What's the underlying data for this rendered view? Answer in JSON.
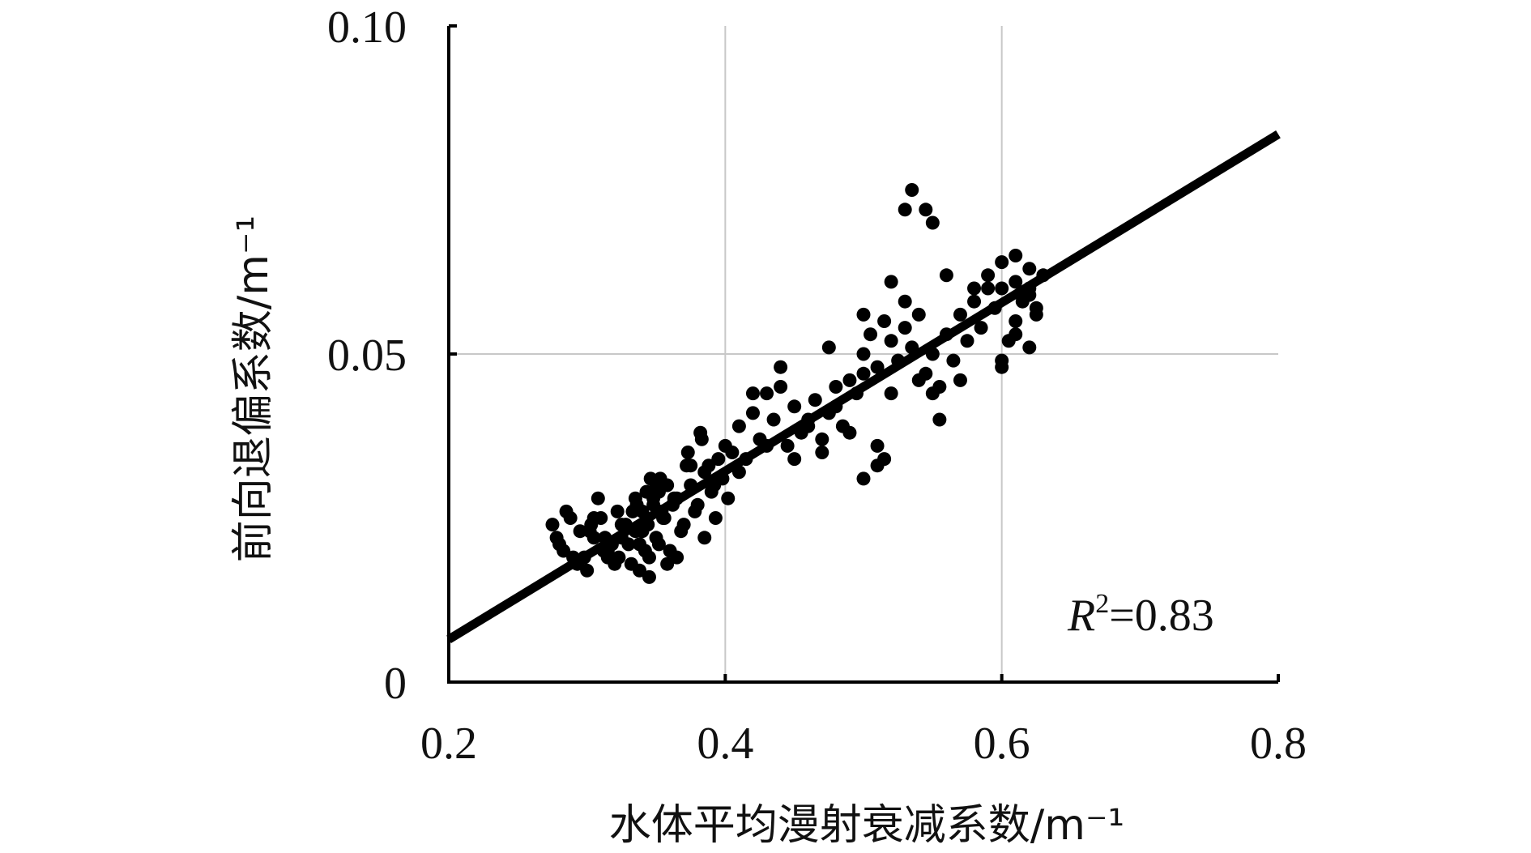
{
  "chart_data": {
    "type": "scatter",
    "title": "",
    "xlabel": "水体平均漫射衰减系数/m⁻¹",
    "ylabel": "前向退偏系数/m⁻¹",
    "xlim": [
      0.2,
      0.8
    ],
    "ylim": [
      0,
      0.1
    ],
    "x_ticks": [
      0.2,
      0.4,
      0.6,
      0.8
    ],
    "x_tick_labels": [
      "0.2",
      "0.4",
      "0.6",
      "0.8"
    ],
    "y_ticks": [
      0,
      0.05,
      0.1
    ],
    "y_tick_labels": [
      "0",
      "0.05",
      "0.10"
    ],
    "grid": true,
    "marker_color": "#000000",
    "line_color": "#000000",
    "annotation": {
      "r_symbol": "R",
      "r_sup": "2",
      "r_value": "=0.83"
    },
    "fit_line": {
      "x": [
        0.2,
        0.8
      ],
      "y": [
        0.0065,
        0.0835
      ]
    },
    "points": {
      "x": [
        0.275,
        0.28,
        0.285,
        0.29,
        0.295,
        0.3,
        0.305,
        0.31,
        0.315,
        0.32,
        0.325,
        0.33,
        0.335,
        0.34,
        0.345,
        0.35,
        0.355,
        0.36,
        0.365,
        0.37,
        0.375,
        0.38,
        0.385,
        0.39,
        0.395,
        0.4,
        0.278,
        0.288,
        0.298,
        0.308,
        0.318,
        0.328,
        0.338,
        0.348,
        0.358,
        0.368,
        0.378,
        0.388,
        0.398,
        0.283,
        0.293,
        0.303,
        0.313,
        0.323,
        0.333,
        0.343,
        0.353,
        0.363,
        0.373,
        0.383,
        0.393,
        0.302,
        0.312,
        0.322,
        0.332,
        0.342,
        0.352,
        0.362,
        0.372,
        0.382,
        0.392,
        0.402,
        0.305,
        0.315,
        0.325,
        0.335,
        0.345,
        0.355,
        0.365,
        0.375,
        0.385,
        0.336,
        0.344,
        0.352,
        0.338,
        0.346,
        0.354,
        0.34,
        0.348,
        0.356,
        0.342,
        0.35,
        0.358,
        0.405,
        0.41,
        0.415,
        0.42,
        0.425,
        0.43,
        0.435,
        0.44,
        0.445,
        0.45,
        0.455,
        0.46,
        0.465,
        0.47,
        0.475,
        0.48,
        0.485,
        0.49,
        0.495,
        0.41,
        0.42,
        0.43,
        0.44,
        0.45,
        0.46,
        0.47,
        0.48,
        0.49,
        0.5,
        0.5,
        0.505,
        0.51,
        0.515,
        0.52,
        0.525,
        0.53,
        0.535,
        0.54,
        0.545,
        0.55,
        0.555,
        0.56,
        0.565,
        0.57,
        0.575,
        0.58,
        0.585,
        0.59,
        0.595,
        0.5,
        0.51,
        0.52,
        0.53,
        0.54,
        0.55,
        0.56,
        0.57,
        0.58,
        0.59,
        0.6,
        0.61,
        0.62,
        0.6,
        0.605,
        0.61,
        0.615,
        0.62,
        0.625,
        0.6,
        0.61,
        0.62,
        0.63,
        0.6,
        0.61,
        0.62,
        0.625,
        0.535,
        0.545,
        0.55,
        0.53,
        0.555,
        0.51,
        0.515,
        0.52,
        0.475,
        0.5
      ],
      "y": [
        0.024,
        0.021,
        0.026,
        0.019,
        0.023,
        0.017,
        0.022,
        0.025,
        0.02,
        0.018,
        0.024,
        0.021,
        0.023,
        0.026,
        0.019,
        0.022,
        0.025,
        0.02,
        0.028,
        0.024,
        0.03,
        0.027,
        0.032,
        0.029,
        0.034,
        0.036,
        0.022,
        0.025,
        0.019,
        0.028,
        0.021,
        0.024,
        0.017,
        0.027,
        0.03,
        0.023,
        0.026,
        0.033,
        0.031,
        0.02,
        0.018,
        0.024,
        0.022,
        0.019,
        0.026,
        0.029,
        0.031,
        0.028,
        0.035,
        0.037,
        0.025,
        0.023,
        0.02,
        0.026,
        0.018,
        0.024,
        0.021,
        0.027,
        0.033,
        0.038,
        0.03,
        0.028,
        0.025,
        0.019,
        0.022,
        0.028,
        0.016,
        0.03,
        0.019,
        0.033,
        0.022,
        0.027,
        0.024,
        0.029,
        0.021,
        0.031,
        0.026,
        0.023,
        0.028,
        0.025,
        0.02,
        0.03,
        0.018,
        0.035,
        0.039,
        0.034,
        0.041,
        0.037,
        0.044,
        0.04,
        0.045,
        0.036,
        0.042,
        0.038,
        0.04,
        0.043,
        0.037,
        0.041,
        0.045,
        0.039,
        0.046,
        0.044,
        0.032,
        0.044,
        0.036,
        0.048,
        0.034,
        0.039,
        0.035,
        0.042,
        0.038,
        0.047,
        0.05,
        0.053,
        0.048,
        0.055,
        0.052,
        0.049,
        0.054,
        0.051,
        0.056,
        0.047,
        0.05,
        0.045,
        0.053,
        0.049,
        0.056,
        0.052,
        0.058,
        0.054,
        0.06,
        0.057,
        0.031,
        0.033,
        0.061,
        0.058,
        0.046,
        0.044,
        0.062,
        0.046,
        0.06,
        0.062,
        0.06,
        0.061,
        0.063,
        0.049,
        0.052,
        0.055,
        0.058,
        0.051,
        0.056,
        0.048,
        0.053,
        0.059,
        0.062,
        0.064,
        0.065,
        0.06,
        0.057,
        0.075,
        0.072,
        0.07,
        0.072,
        0.04,
        0.036,
        0.034,
        0.044,
        0.051,
        0.056
      ]
    }
  }
}
